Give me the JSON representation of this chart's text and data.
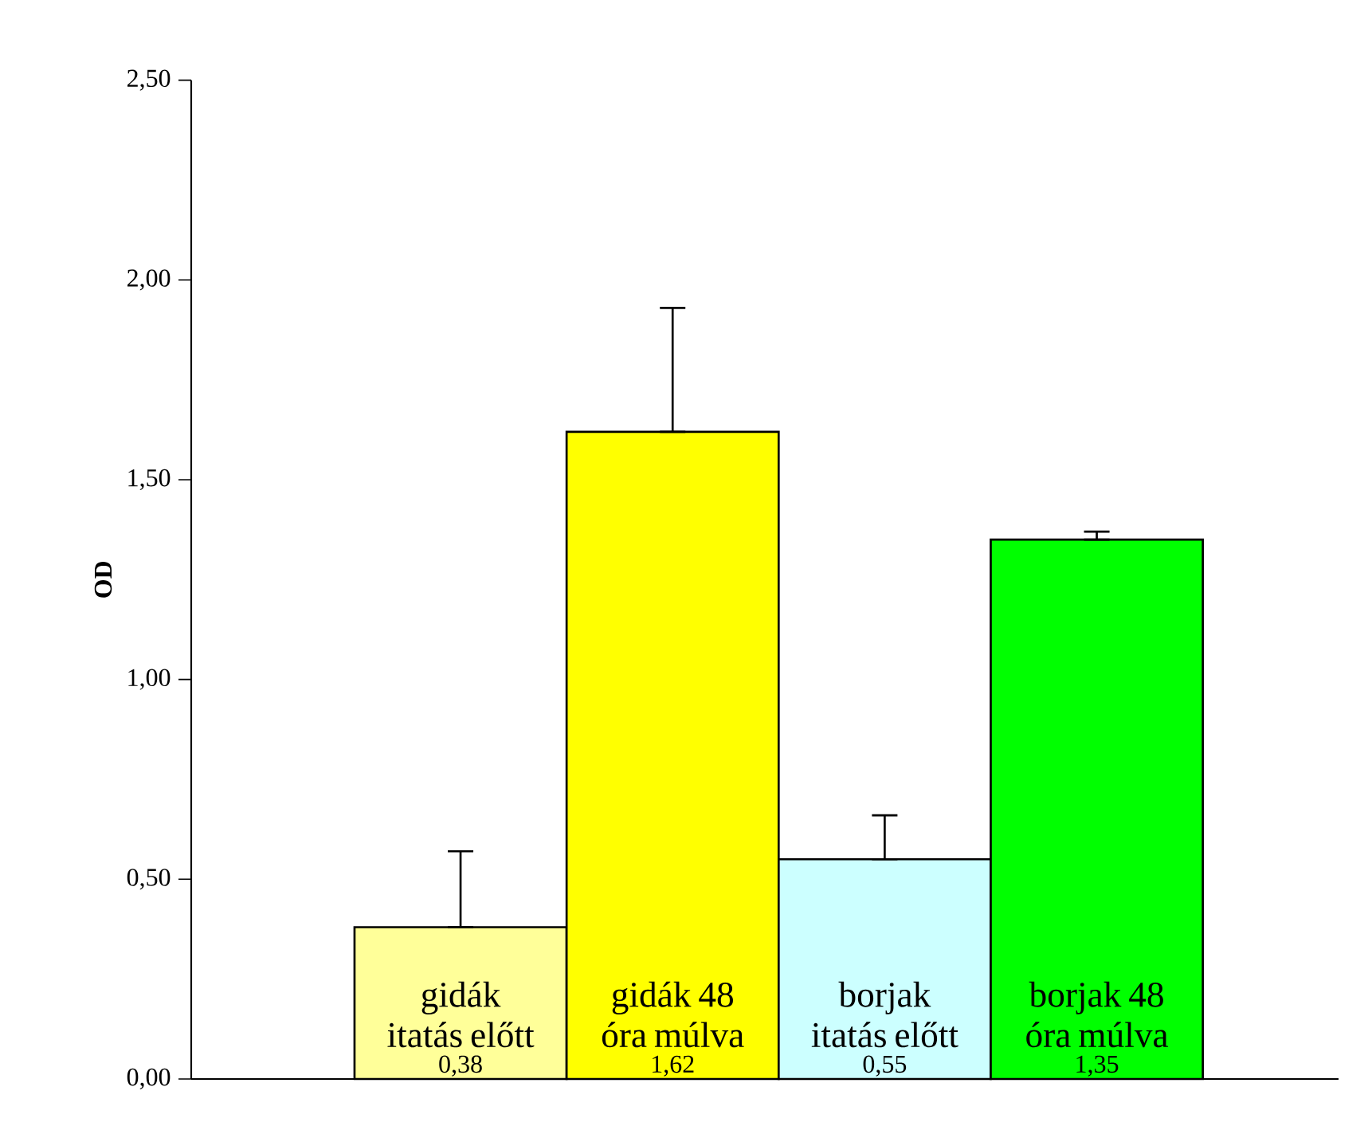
{
  "chart_data": {
    "type": "bar",
    "ylabel": "OD",
    "categories": [
      "gidák itatás előtt",
      "gidák 48 óra múlva",
      "borjak itatás előtt",
      "borjak 48 óra múlva"
    ],
    "values": [
      0.38,
      1.62,
      0.55,
      1.35
    ],
    "colors": [
      "#ffff99",
      "#ffff00",
      "#ccffff",
      "#00ff00"
    ],
    "errors": [
      [
        0.38,
        0.57
      ],
      [
        1.62,
        1.93
      ],
      [
        0.55,
        0.66
      ],
      [
        1.35,
        1.37
      ]
    ],
    "value_labels": [
      "0,38",
      "1,62",
      "0,55",
      "1,35"
    ],
    "ylim": [
      0,
      2.5
    ],
    "yticks": [
      {
        "value": 0,
        "label": "0,00"
      },
      {
        "value": 0.5,
        "label": "0,50"
      },
      {
        "value": 1,
        "label": "1,00"
      },
      {
        "value": 1.5,
        "label": "1,50"
      },
      {
        "value": 2,
        "label": "2,00"
      },
      {
        "value": 2.5,
        "label": "2,50"
      }
    ],
    "grid": false
  }
}
